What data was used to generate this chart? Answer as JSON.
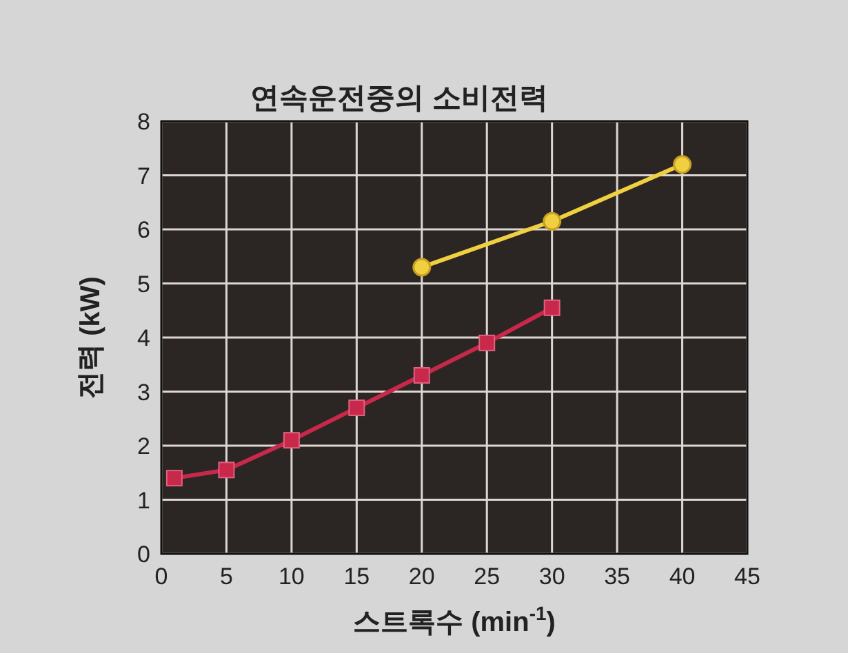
{
  "chart_data": {
    "type": "line",
    "title": "연속운전중의  소비전력",
    "xlabel": "스트록수 (min$^{-1}$)",
    "ylabel": "전력 (kW)",
    "xlim": [
      0,
      45
    ],
    "xticks": [
      0,
      5,
      10,
      15,
      20,
      25,
      30,
      35,
      40,
      45
    ],
    "ylim": [
      0,
      8
    ],
    "yticks": [
      0,
      1,
      2,
      3,
      4,
      5,
      6,
      7,
      8
    ],
    "grid": true,
    "series": [
      {
        "color": "#c8284a",
        "marker": "square",
        "x": [
          1,
          5,
          10,
          15,
          20,
          25,
          30
        ],
        "values": [
          1.4,
          1.55,
          2.1,
          2.7,
          3.3,
          3.9,
          4.55
        ]
      },
      {
        "color": "#f0d040",
        "marker": "circle",
        "x": [
          20,
          30,
          40
        ],
        "values": [
          5.3,
          6.15,
          7.2
        ]
      }
    ]
  }
}
